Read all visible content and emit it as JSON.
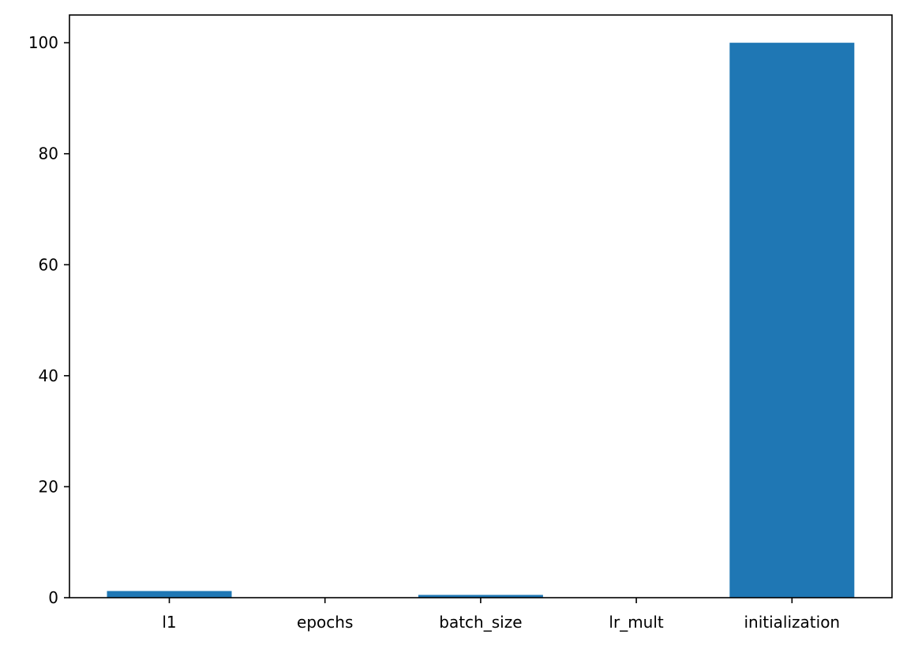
{
  "chart_data": {
    "type": "bar",
    "categories": [
      "l1",
      "epochs",
      "batch_size",
      "lr_mult",
      "initialization"
    ],
    "values": [
      1.2,
      0.05,
      0.5,
      0.05,
      100
    ],
    "ylim": [
      0,
      105
    ],
    "yticks": [
      0,
      20,
      40,
      60,
      80,
      100
    ],
    "grid": false,
    "colors": {
      "bar": "#1f77b4",
      "axis": "#000000"
    }
  }
}
